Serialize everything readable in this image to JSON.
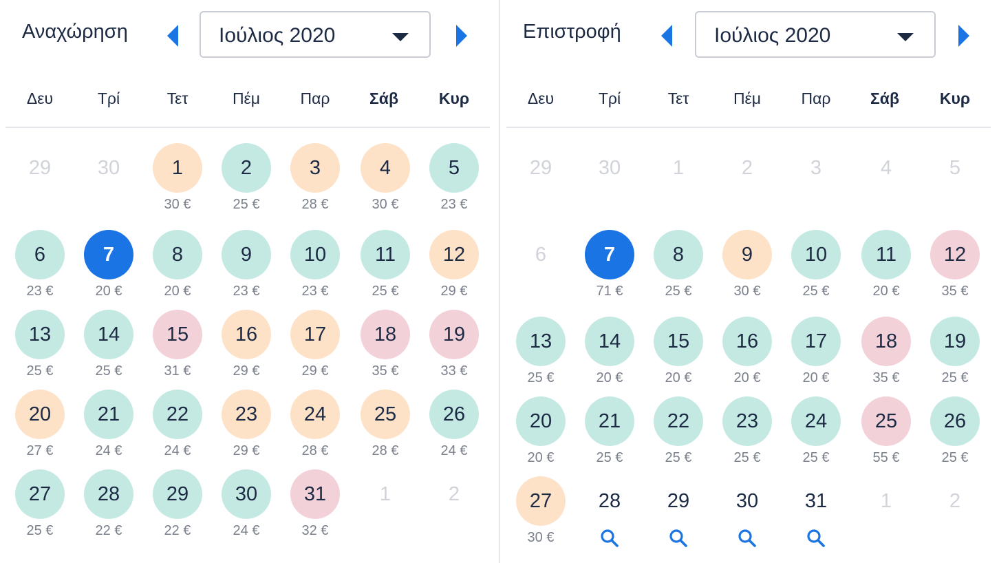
{
  "weekdays": [
    "Δευ",
    "Τρί",
    "Τετ",
    "Πέμ",
    "Παρ",
    "Σάβ",
    "Κυρ"
  ],
  "colors": {
    "green": "#c4e9e3",
    "orange": "#fde2c8",
    "pink": "#f3d1d8",
    "selected": "#1b74e4",
    "accent": "#1b74e4"
  },
  "departure": {
    "title": "Αναχώρηση",
    "month": "Ιούλιος 2020",
    "rows": [
      [
        {
          "d": "29",
          "c": "muted"
        },
        {
          "d": "30",
          "c": "muted"
        },
        {
          "d": "1",
          "c": "orange",
          "p": "30 €"
        },
        {
          "d": "2",
          "c": "green",
          "p": "25 €"
        },
        {
          "d": "3",
          "c": "orange",
          "p": "28 €"
        },
        {
          "d": "4",
          "c": "orange",
          "p": "30 €"
        },
        {
          "d": "5",
          "c": "green",
          "p": "23 €"
        }
      ],
      [
        {
          "d": "6",
          "c": "green",
          "p": "23 €"
        },
        {
          "d": "7",
          "c": "selected",
          "p": "20 €"
        },
        {
          "d": "8",
          "c": "green",
          "p": "20 €"
        },
        {
          "d": "9",
          "c": "green",
          "p": "23 €"
        },
        {
          "d": "10",
          "c": "green",
          "p": "23 €"
        },
        {
          "d": "11",
          "c": "green",
          "p": "25 €"
        },
        {
          "d": "12",
          "c": "orange",
          "p": "29 €"
        }
      ],
      [
        {
          "d": "13",
          "c": "green",
          "p": "25 €"
        },
        {
          "d": "14",
          "c": "green",
          "p": "25 €"
        },
        {
          "d": "15",
          "c": "pink",
          "p": "31 €"
        },
        {
          "d": "16",
          "c": "orange",
          "p": "29 €"
        },
        {
          "d": "17",
          "c": "orange",
          "p": "29 €"
        },
        {
          "d": "18",
          "c": "pink",
          "p": "35 €"
        },
        {
          "d": "19",
          "c": "pink",
          "p": "33 €"
        }
      ],
      [
        {
          "d": "20",
          "c": "orange",
          "p": "27 €"
        },
        {
          "d": "21",
          "c": "green",
          "p": "24 €"
        },
        {
          "d": "22",
          "c": "green",
          "p": "24 €"
        },
        {
          "d": "23",
          "c": "orange",
          "p": "29 €"
        },
        {
          "d": "24",
          "c": "orange",
          "p": "28 €"
        },
        {
          "d": "25",
          "c": "orange",
          "p": "28 €"
        },
        {
          "d": "26",
          "c": "green",
          "p": "24 €"
        }
      ],
      [
        {
          "d": "27",
          "c": "green",
          "p": "25 €"
        },
        {
          "d": "28",
          "c": "green",
          "p": "22 €"
        },
        {
          "d": "29",
          "c": "green",
          "p": "22 €"
        },
        {
          "d": "30",
          "c": "green",
          "p": "24 €"
        },
        {
          "d": "31",
          "c": "pink",
          "p": "32 €"
        },
        {
          "d": "1",
          "c": "muted"
        },
        {
          "d": "2",
          "c": "muted"
        }
      ]
    ]
  },
  "return": {
    "title": "Επιστροφή",
    "month": "Ιούλιος 2020",
    "rows": [
      [
        {
          "d": "29",
          "c": "muted"
        },
        {
          "d": "30",
          "c": "muted"
        },
        {
          "d": "1",
          "c": "muted"
        },
        {
          "d": "2",
          "c": "muted"
        },
        {
          "d": "3",
          "c": "muted"
        },
        {
          "d": "4",
          "c": "muted"
        },
        {
          "d": "5",
          "c": "muted"
        }
      ],
      [
        {
          "d": "6",
          "c": "muted"
        },
        {
          "d": "7",
          "c": "selected",
          "p": "71 €"
        },
        {
          "d": "8",
          "c": "green",
          "p": "25 €"
        },
        {
          "d": "9",
          "c": "orange",
          "p": "30 €"
        },
        {
          "d": "10",
          "c": "green",
          "p": "25 €"
        },
        {
          "d": "11",
          "c": "green",
          "p": "20 €"
        },
        {
          "d": "12",
          "c": "pink",
          "p": "35 €"
        }
      ],
      [
        {
          "d": "13",
          "c": "green",
          "p": "25 €"
        },
        {
          "d": "14",
          "c": "green",
          "p": "20 €"
        },
        {
          "d": "15",
          "c": "green",
          "p": "20 €"
        },
        {
          "d": "16",
          "c": "green",
          "p": "20 €"
        },
        {
          "d": "17",
          "c": "green",
          "p": "20 €"
        },
        {
          "d": "18",
          "c": "pink",
          "p": "35 €"
        },
        {
          "d": "19",
          "c": "green",
          "p": "25 €"
        }
      ],
      [
        {
          "d": "20",
          "c": "green",
          "p": "20 €"
        },
        {
          "d": "21",
          "c": "green",
          "p": "25 €"
        },
        {
          "d": "22",
          "c": "green",
          "p": "25 €"
        },
        {
          "d": "23",
          "c": "green",
          "p": "25 €"
        },
        {
          "d": "24",
          "c": "green",
          "p": "25 €"
        },
        {
          "d": "25",
          "c": "pink",
          "p": "55 €"
        },
        {
          "d": "26",
          "c": "green",
          "p": "25 €"
        }
      ],
      [
        {
          "d": "27",
          "c": "orange",
          "p": "30 €"
        },
        {
          "d": "28",
          "c": "plain",
          "s": true
        },
        {
          "d": "29",
          "c": "plain",
          "s": true
        },
        {
          "d": "30",
          "c": "plain",
          "s": true
        },
        {
          "d": "31",
          "c": "plain",
          "s": true
        },
        {
          "d": "1",
          "c": "muted"
        },
        {
          "d": "2",
          "c": "muted"
        }
      ]
    ]
  }
}
